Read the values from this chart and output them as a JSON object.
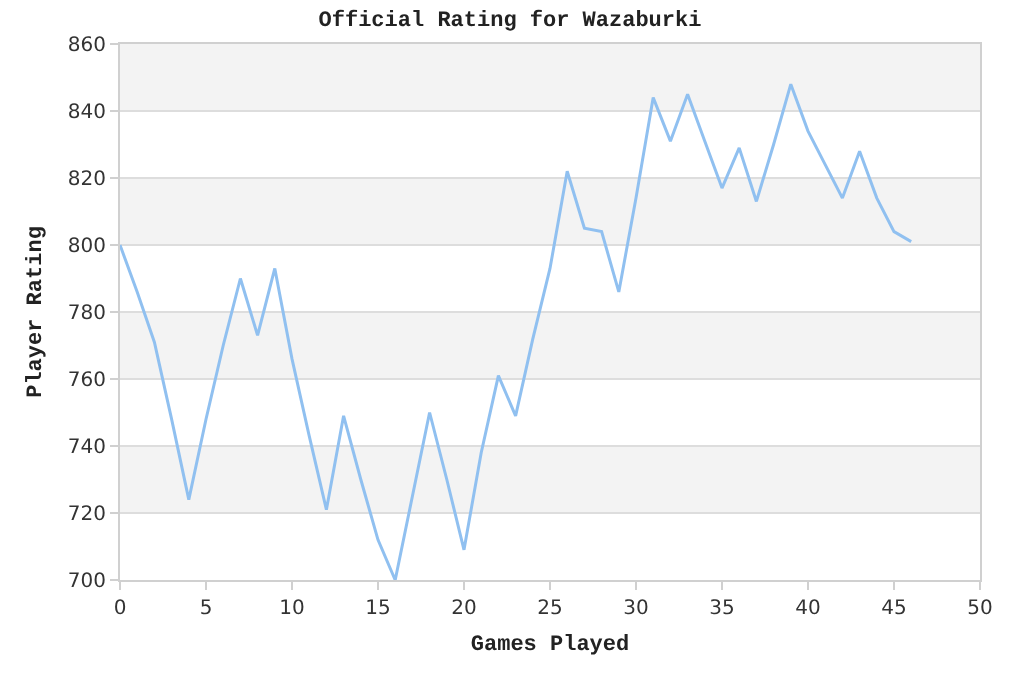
{
  "chart_data": {
    "type": "line",
    "title": "Official Rating for Wazaburki",
    "xlabel": "Games Played",
    "ylabel": "Player Rating",
    "x": [
      0,
      1,
      2,
      3,
      4,
      5,
      6,
      7,
      8,
      9,
      10,
      11,
      12,
      13,
      14,
      15,
      16,
      17,
      18,
      19,
      20,
      21,
      22,
      23,
      24,
      25,
      26,
      27,
      28,
      29,
      30,
      31,
      32,
      33,
      34,
      35,
      36,
      37,
      38,
      39,
      40,
      41,
      42,
      43,
      44,
      45,
      46
    ],
    "series": [
      {
        "color": "#90c0f0",
        "values": [
          800,
          786,
          771,
          748,
          724,
          748,
          770,
          790,
          773,
          793,
          766,
          743,
          721,
          749,
          730,
          712,
          700,
          725,
          750,
          730,
          709,
          738,
          761,
          749,
          772,
          793,
          822,
          805,
          804,
          786,
          814,
          844,
          831,
          845,
          831,
          817,
          829,
          813,
          830,
          848,
          834,
          824,
          814,
          828,
          814,
          804,
          801
        ]
      }
    ],
    "xlim": [
      0,
      50
    ],
    "xticks": [
      0,
      5,
      10,
      15,
      20,
      25,
      30,
      35,
      40,
      45,
      50
    ],
    "ylim": [
      700,
      860
    ],
    "yticks": [
      700,
      720,
      740,
      760,
      780,
      800,
      820,
      840,
      860
    ],
    "bands": [
      {
        "axis": "y",
        "from": 720,
        "to": 740,
        "color": "#f3f3f3"
      },
      {
        "axis": "y",
        "from": 760,
        "to": 780,
        "color": "#f3f3f3"
      },
      {
        "axis": "y",
        "from": 800,
        "to": 820,
        "color": "#f3f3f3"
      },
      {
        "axis": "y",
        "from": 840,
        "to": 860,
        "color": "#f3f3f3"
      }
    ],
    "grid": "y",
    "marker": "none",
    "line_style": "solid"
  }
}
